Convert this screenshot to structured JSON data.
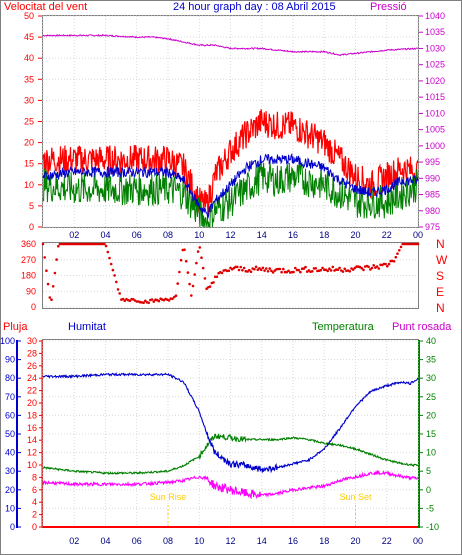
{
  "page": {
    "title": "24 hour graph day : 08 Abril 2015"
  },
  "colors": {
    "wind_avg": "#0000cc",
    "wind_gust": "#ff0000",
    "wind_speed": "#008000",
    "pressure": "#cc00cc",
    "direction": "#e00000",
    "rain": "#ff0000",
    "humidity": "#0000cc",
    "temperature": "#008000",
    "dew_point": "#ff00ff",
    "sun": "#ffcc00"
  },
  "chart_data": [
    {
      "type": "line",
      "panel": "wind_pressure",
      "title": "24 hour graph day : 08 Abril 2015",
      "left_axis_label": "Velocitat del vent",
      "right_axis_label": "Pressió",
      "ylim_left": [
        0,
        50
      ],
      "yticks_left": [
        "0",
        "5",
        "10",
        "15",
        "20",
        "25",
        "30",
        "35",
        "40",
        "45",
        "50"
      ],
      "ylim_right": [
        975,
        1040
      ],
      "yticks_right": [
        "975",
        "980",
        "985",
        "990",
        "995",
        "1000",
        "1005",
        "1010",
        "1015",
        "1020",
        "1025",
        "1030",
        "1035",
        "1040"
      ],
      "xticks": [
        "02",
        "04",
        "06",
        "08",
        "10",
        "12",
        "14",
        "16",
        "18",
        "20",
        "22",
        "00"
      ],
      "series": [
        {
          "key": "pressure",
          "axis": "right",
          "x": [
            0,
            2,
            4,
            6,
            7,
            8,
            9,
            10,
            11,
            12,
            14,
            16,
            18,
            19,
            20,
            21,
            22,
            24
          ],
          "values": [
            1034,
            1034,
            1034,
            1033.5,
            1033.5,
            1033,
            1032,
            1031,
            1031,
            1030,
            1030,
            1029,
            1029,
            1028,
            1028.5,
            1029,
            1029.5,
            1030
          ]
        },
        {
          "key": "wind_gust",
          "axis": "left",
          "x": [
            0,
            2,
            4,
            6,
            8,
            9,
            10,
            10.5,
            11,
            12,
            13,
            14,
            15,
            16,
            17,
            18,
            19,
            20,
            21,
            22,
            23,
            24
          ],
          "values": [
            16,
            16,
            16,
            16,
            16,
            14,
            6,
            5,
            12,
            18,
            22,
            25,
            24,
            24,
            22,
            20,
            16,
            12,
            10,
            12,
            14,
            13
          ]
        },
        {
          "key": "wind_avg",
          "axis": "left",
          "x": [
            0,
            2,
            4,
            6,
            8,
            9,
            10,
            10.5,
            11,
            12,
            13,
            14,
            15,
            16,
            17,
            18,
            19,
            20,
            21,
            22,
            23,
            24
          ],
          "values": [
            12,
            13,
            13,
            13,
            13,
            11,
            5,
            3,
            6,
            10,
            14,
            16,
            16,
            16,
            15,
            14,
            11,
            9,
            8,
            9,
            11,
            11
          ]
        },
        {
          "key": "wind_speed",
          "axis": "left",
          "x": [
            0,
            2,
            4,
            6,
            8,
            9,
            10,
            10.5,
            11,
            12,
            13,
            14,
            15,
            16,
            17,
            18,
            19,
            20,
            21,
            22,
            23,
            24
          ],
          "values": [
            10,
            9,
            9,
            9,
            9,
            8,
            3,
            1,
            4,
            6,
            9,
            12,
            11,
            12,
            11,
            10,
            8,
            6,
            6,
            6,
            8,
            10
          ]
        }
      ]
    },
    {
      "type": "scatter",
      "panel": "wind_direction",
      "yticks": [
        "0",
        "90",
        "180",
        "270",
        "360"
      ],
      "compass": [
        "N",
        "W",
        "S",
        "E",
        "N"
      ],
      "series": [
        {
          "key": "direction",
          "x": [
            0,
            0.5,
            1,
            2,
            3,
            4,
            5,
            6,
            6.5,
            7,
            7.5,
            8,
            8.5,
            9,
            9.5,
            10,
            10.5,
            11,
            12,
            13,
            14,
            15,
            16,
            17,
            18,
            19,
            20,
            21,
            22,
            22.5,
            23,
            24
          ],
          "values": [
            360,
            10,
            360,
            360,
            360,
            360,
            45,
            40,
            30,
            35,
            40,
            45,
            55,
            360,
            60,
            360,
            90,
            170,
            220,
            215,
            215,
            210,
            210,
            215,
            215,
            215,
            220,
            225,
            240,
            270,
            360,
            360
          ]
        }
      ]
    },
    {
      "type": "line",
      "panel": "rain_humidity_temperature",
      "labels": {
        "rain": "Pluja",
        "humidity": "Humitat",
        "temperature": "Temperatura",
        "dew_point": "Punt rosada"
      },
      "yticks_humidity": [
        "0",
        "10",
        "20",
        "30",
        "40",
        "50",
        "60",
        "70",
        "80",
        "90",
        "100"
      ],
      "yticks_rain": [
        "0",
        "2",
        "4",
        "6",
        "8",
        "10",
        "12",
        "14",
        "16",
        "18",
        "20",
        "22",
        "24",
        "26",
        "28",
        "30"
      ],
      "yticks_temperature": [
        "-10",
        "-5",
        "0",
        "5",
        "10",
        "15",
        "20",
        "25",
        "30",
        "35",
        "40"
      ],
      "xticks": [
        "02",
        "04",
        "06",
        "08",
        "10",
        "12",
        "14",
        "16",
        "18",
        "20",
        "22",
        "00"
      ],
      "annotations": [
        {
          "text": "Sun Rise",
          "x": 8.0
        },
        {
          "text": "Sun Set",
          "x": 20.0
        }
      ],
      "series": [
        {
          "key": "humidity",
          "axis": "humidity",
          "x": [
            0,
            2,
            4,
            6,
            8,
            9,
            10,
            10.5,
            11,
            12,
            13,
            14,
            15,
            16,
            17,
            18,
            19,
            20,
            21,
            22,
            23,
            23.5,
            24
          ],
          "values": [
            81,
            81,
            82,
            82,
            82,
            78,
            62,
            50,
            40,
            34,
            33,
            31,
            32,
            34,
            36,
            42,
            53,
            65,
            73,
            76,
            78,
            77,
            80
          ]
        },
        {
          "key": "temperature",
          "axis": "temperature",
          "x": [
            0,
            2,
            4,
            6,
            8,
            9,
            10,
            10.5,
            11,
            12,
            13,
            14,
            15,
            16,
            17,
            18,
            19,
            20,
            21,
            22,
            23,
            24
          ],
          "values": [
            6.0,
            5.0,
            4.5,
            4.5,
            5.0,
            6.5,
            9.0,
            12.0,
            14.5,
            14.0,
            13.5,
            13.5,
            13.5,
            14.0,
            13.5,
            12.5,
            12.0,
            11.0,
            9.5,
            8.0,
            7.0,
            6.5
          ]
        },
        {
          "key": "dew_point",
          "axis": "temperature",
          "x": [
            0,
            2,
            4,
            6,
            8,
            9,
            10,
            10.5,
            11,
            12,
            13,
            14,
            15,
            16,
            17,
            18,
            19,
            20,
            21,
            22,
            23,
            24
          ],
          "values": [
            2.0,
            1.5,
            1.5,
            1.5,
            2.0,
            2.5,
            3.5,
            3.0,
            1.0,
            0.0,
            -1.0,
            -1.5,
            -1.0,
            0.0,
            0.5,
            1.0,
            2.5,
            3.5,
            4.5,
            4.5,
            3.5,
            3.0
          ]
        },
        {
          "key": "rain",
          "axis": "rain",
          "x": [
            0,
            24
          ],
          "values": [
            0,
            0
          ]
        }
      ]
    }
  ]
}
